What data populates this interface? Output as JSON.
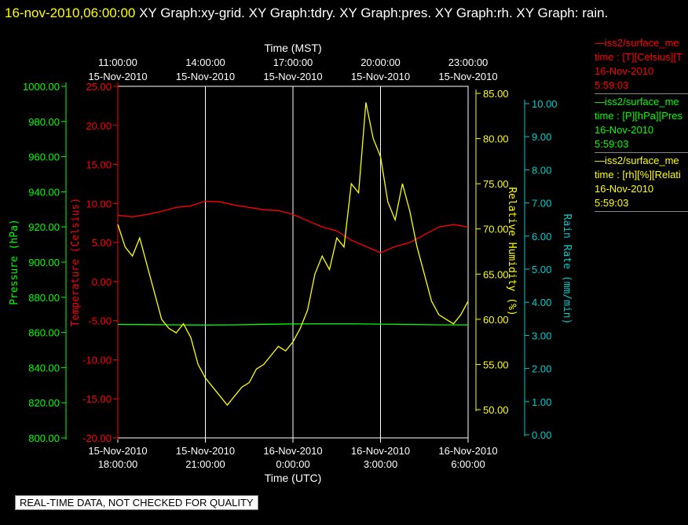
{
  "title": {
    "timestamp": "16-nov-2010,06:00:00",
    "graphs": "XY Graph:xy-grid.  XY Graph:tdry.  XY Graph:pres.  XY Graph:rh.  XY Graph: rain."
  },
  "legend": [
    {
      "line1": "—iss2/surface_me",
      "line2": "time : [T][Celsius][T",
      "line3": "16-Nov-2010",
      "line4": "5:59:03",
      "color": "#ff0000"
    },
    {
      "line1": "—iss2/surface_me",
      "line2": "time : [P][hPa][Pres",
      "line3": "16-Nov-2010",
      "line4": "5:59:03",
      "color": "#00ff00"
    },
    {
      "line1": "—iss2/surface_me",
      "line2": "time : [rh][%][Relati",
      "line3": "16-Nov-2010",
      "line4": "5:59:03",
      "color": "#ffff00"
    }
  ],
  "footer": "REAL-TIME DATA, NOT CHECKED FOR QUALITY",
  "chart_data": {
    "type": "line",
    "top_axis_title": "Time (MST)",
    "bottom_axis_title": "Time (UTC)",
    "top_ticks": [
      {
        "t": "11:00:00",
        "d": "15-Nov-2010"
      },
      {
        "t": "14:00:00",
        "d": "15-Nov-2010"
      },
      {
        "t": "17:00:00",
        "d": "15-Nov-2010"
      },
      {
        "t": "20:00:00",
        "d": "15-Nov-2010"
      },
      {
        "t": "23:00:00",
        "d": "15-Nov-2010"
      }
    ],
    "bottom_ticks": [
      {
        "d": "15-Nov-2010",
        "t": "18:00:00"
      },
      {
        "d": "15-Nov-2010",
        "t": "21:00:00"
      },
      {
        "d": "16-Nov-2010",
        "t": "0:00:00"
      },
      {
        "d": "16-Nov-2010",
        "t": "3:00:00"
      },
      {
        "d": "16-Nov-2010",
        "t": "6:00:00"
      }
    ],
    "x_range_hours_utc": [
      "15-Nov-2010 18:00:00",
      "16-Nov-2010 06:00:00"
    ],
    "axes": {
      "pressure": {
        "label": "Pressure (hPa)",
        "color": "#00ff00",
        "ylim": [
          800,
          1000
        ],
        "ticks": [
          "800.00",
          "820.00",
          "840.00",
          "860.00",
          "880.00",
          "900.00",
          "920.00",
          "940.00",
          "960.00",
          "980.00",
          "1000.00"
        ]
      },
      "temperature": {
        "label": "Temperature (Celsius)",
        "color": "#ff0000",
        "ylim": [
          -20,
          25
        ],
        "ticks": [
          "-20.00",
          "-15.00",
          "-10.00",
          "-5.00",
          "0.00",
          "5.00",
          "10.00",
          "15.00",
          "20.00",
          "25.00"
        ]
      },
      "humidity": {
        "label": "Relative Humidity (%)",
        "color": "#ffff00",
        "ylim": [
          47.5,
          86
        ],
        "ticks": [
          "50.00",
          "55.00",
          "60.00",
          "65.00",
          "70.00",
          "75.00",
          "80.00",
          "85.00"
        ]
      },
      "rain": {
        "label": "Rain Rate (mm/min)",
        "color": "#00cccc",
        "ylim": [
          0,
          10.5
        ],
        "ticks": [
          "0.00",
          "1.00",
          "2.00",
          "3.00",
          "4.00",
          "5.00",
          "6.00",
          "7.00",
          "8.00",
          "9.00",
          "10.00"
        ]
      }
    },
    "series": [
      {
        "name": "Temperature",
        "axis": "temperature",
        "color": "#ff0000",
        "x": [
          0,
          0.5,
          1,
          1.5,
          2,
          2.5,
          3,
          3.5,
          4,
          4.5,
          5,
          5.5,
          6,
          6.5,
          7,
          7.5,
          8,
          8.5,
          9,
          9.5,
          10,
          10.5,
          11,
          11.5,
          12
        ],
        "values": [
          8.5,
          8.3,
          8.6,
          9.0,
          9.5,
          9.7,
          10.3,
          10.2,
          9.8,
          9.5,
          9.2,
          9.1,
          8.6,
          7.8,
          7.0,
          6.5,
          5.3,
          4.5,
          3.7,
          4.5,
          5.0,
          6.0,
          7.0,
          7.3,
          7.0
        ]
      },
      {
        "name": "Pressure",
        "axis": "pressure",
        "color": "#00ff00",
        "x": [
          0,
          1,
          2,
          3,
          4,
          5,
          6,
          7,
          8,
          9,
          10,
          11,
          12
        ],
        "values": [
          864.5,
          864.4,
          864.3,
          864.2,
          864.3,
          864.6,
          864.8,
          864.9,
          864.9,
          864.7,
          864.5,
          864.3,
          864.3
        ]
      },
      {
        "name": "Relative Humidity",
        "axis": "humidity",
        "color": "#ffff00",
        "x": [
          0,
          0.25,
          0.5,
          0.75,
          1,
          1.25,
          1.5,
          1.75,
          2,
          2.25,
          2.5,
          2.75,
          3,
          3.25,
          3.5,
          3.75,
          4,
          4.25,
          4.5,
          4.75,
          5,
          5.25,
          5.5,
          5.75,
          6,
          6.25,
          6.5,
          6.75,
          7,
          7.25,
          7.5,
          7.75,
          8,
          8.25,
          8.5,
          8.75,
          9,
          9.25,
          9.5,
          9.75,
          10,
          10.25,
          10.5,
          10.75,
          11,
          11.25,
          11.5,
          11.75,
          12
        ],
        "values": [
          70.5,
          68.0,
          67.0,
          69.0,
          66.0,
          63.0,
          60.0,
          59.0,
          58.5,
          59.5,
          58.0,
          55.0,
          53.5,
          52.5,
          51.5,
          50.5,
          51.5,
          52.5,
          53.0,
          54.5,
          55.0,
          56.0,
          57.0,
          56.5,
          57.5,
          59.0,
          61.0,
          65.0,
          67.0,
          65.5,
          69.0,
          68.0,
          75.0,
          74.0,
          84.0,
          80.0,
          78.0,
          73.0,
          71.0,
          75.0,
          72.0,
          68.0,
          65.0,
          62.0,
          60.5,
          60.0,
          59.5,
          60.5,
          62.0
        ]
      }
    ]
  }
}
